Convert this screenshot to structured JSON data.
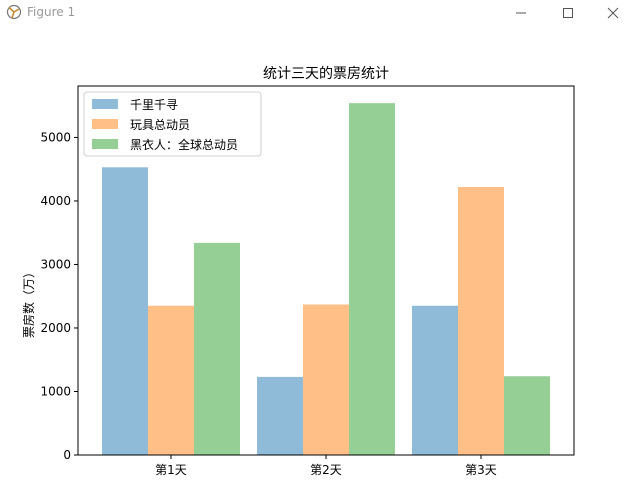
{
  "window": {
    "title": "Figure 1",
    "icon": "matplotlib-icon",
    "controls": [
      "minimize-icon",
      "maximize-icon",
      "close-icon"
    ]
  },
  "chart_data": {
    "type": "bar",
    "title": "统计三天的票房统计",
    "xlabel": "",
    "ylabel": "票房数（万）",
    "categories": [
      "第1天",
      "第2天",
      "第3天"
    ],
    "series": [
      {
        "name": "千里千寻",
        "values": [
          4530,
          1230,
          2350
        ],
        "color": "#8fbbd9"
      },
      {
        "name": "玩具总动员",
        "values": [
          2350,
          2370,
          4220
        ],
        "color": "#ffbf86"
      },
      {
        "name": "黑衣人：全球总动员",
        "values": [
          3340,
          5540,
          1240
        ],
        "color": "#95cf95"
      }
    ],
    "yticks": [
      0,
      1000,
      2000,
      3000,
      4000,
      5000
    ],
    "ylim": [
      0,
      5810
    ],
    "grid": false,
    "legend_position": "top-left"
  }
}
